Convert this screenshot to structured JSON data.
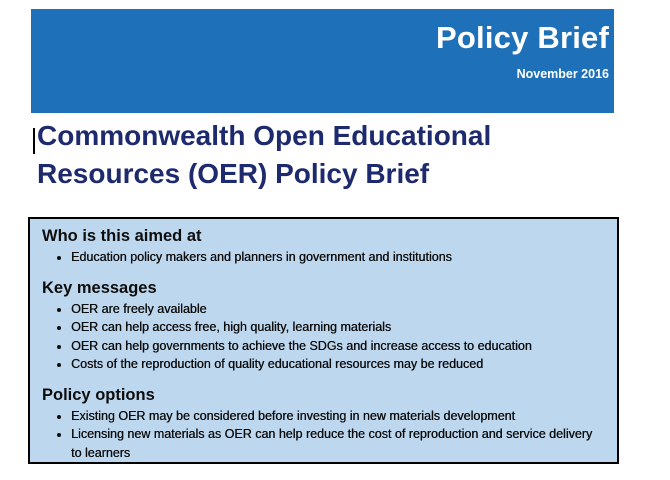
{
  "banner": {
    "title": "Policy Brief",
    "date": "November 2016"
  },
  "document": {
    "title": "Commonwealth Open Educational Resources (OER) Policy Brief"
  },
  "summary_box": {
    "sections": [
      {
        "heading": "Who is this aimed at",
        "bullets": [
          "Education policy makers and planners in government and institutions"
        ]
      },
      {
        "heading": "Key messages",
        "bullets": [
          "OER are freely available",
          "OER can help access free, high quality, learning materials",
          "OER can help governments to achieve the SDGs and increase access to education",
          "Costs of the reproduction of quality educational resources may be reduced"
        ]
      },
      {
        "heading": "Policy options",
        "bullets": [
          "Existing OER may be considered before investing in new materials development",
          "Licensing new materials as OER can help reduce the cost of reproduction and service delivery to learners"
        ]
      }
    ]
  },
  "colors": {
    "banner_blue": "#1E70B8",
    "box_fill": "#BDD7EE",
    "box_border": "#000000",
    "title_navy": "#1E2A6E"
  }
}
